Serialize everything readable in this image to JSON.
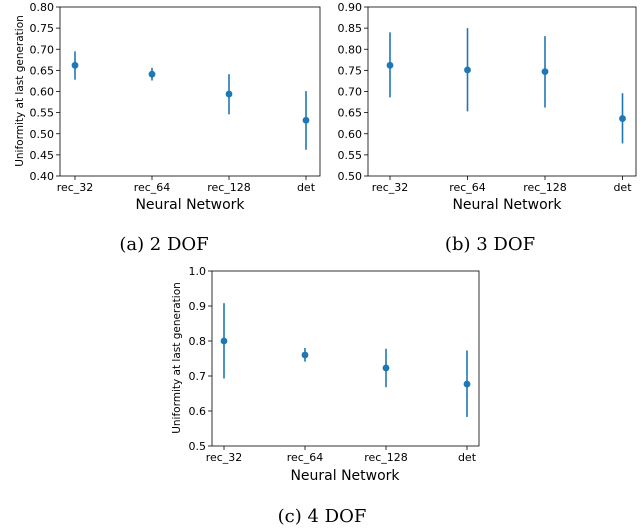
{
  "chart_data": [
    {
      "type": "scatter",
      "caption": "(a) 2 DOF",
      "xlabel": "Neural Network",
      "ylabel": "Uniformity at last generation",
      "categories": [
        "rec_32",
        "rec_64",
        "rec_128",
        "det"
      ],
      "ylim": [
        0.4,
        0.8
      ],
      "yticks": [
        "0.40",
        "0.45",
        "0.50",
        "0.55",
        "0.60",
        "0.65",
        "0.70",
        "0.75",
        "0.80"
      ],
      "grid": false,
      "series": [
        {
          "values": [
            0.662,
            0.641,
            0.594,
            0.532
          ],
          "err_low": [
            0.628,
            0.626,
            0.546,
            0.462
          ],
          "err_high": [
            0.695,
            0.656,
            0.641,
            0.601
          ]
        }
      ]
    },
    {
      "type": "scatter",
      "caption": "(b) 3 DOF",
      "xlabel": "Neural Network",
      "ylabel": "",
      "categories": [
        "rec_32",
        "rec_64",
        "rec_128",
        "det"
      ],
      "ylim": [
        0.5,
        0.9
      ],
      "yticks": [
        "0.50",
        "0.55",
        "0.60",
        "0.65",
        "0.70",
        "0.75",
        "0.80",
        "0.85",
        "0.90"
      ],
      "grid": false,
      "series": [
        {
          "values": [
            0.762,
            0.751,
            0.747,
            0.636
          ],
          "err_low": [
            0.686,
            0.653,
            0.662,
            0.577
          ],
          "err_high": [
            0.84,
            0.85,
            0.831,
            0.696
          ]
        }
      ]
    },
    {
      "type": "scatter",
      "caption": "(c) 4 DOF",
      "xlabel": "Neural Network",
      "ylabel": "Uniformity at last generation",
      "categories": [
        "rec_32",
        "rec_64",
        "rec_128",
        "det"
      ],
      "ylim": [
        0.5,
        1.0
      ],
      "yticks": [
        "0.5",
        "0.6",
        "0.7",
        "0.8",
        "0.9",
        "1.0"
      ],
      "grid": false,
      "series": [
        {
          "values": [
            0.8,
            0.76,
            0.723,
            0.677
          ],
          "err_low": [
            0.693,
            0.741,
            0.668,
            0.583
          ],
          "err_high": [
            0.908,
            0.78,
            0.778,
            0.773
          ]
        }
      ]
    }
  ],
  "colors": {
    "series": "#1f77b4",
    "axis": "#000000"
  }
}
